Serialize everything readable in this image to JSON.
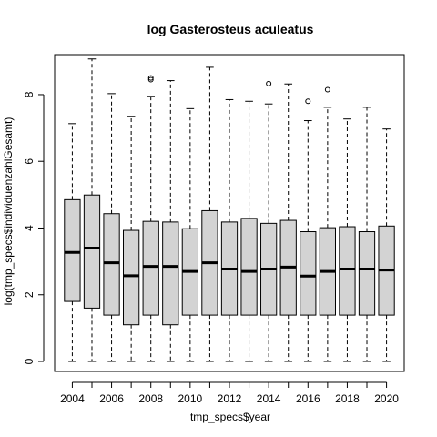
{
  "chart_data": {
    "type": "boxplot",
    "title": "log Gasterosteus aculeatus",
    "xlabel": "tmp_specs$year",
    "ylabel": "log(tmp_specs$individuenzahlGesamt)",
    "ylim": [
      -0.3,
      9.2
    ],
    "yticks": [
      0,
      2,
      4,
      6,
      8
    ],
    "x_tick_labels": [
      "2004",
      "2006",
      "2008",
      "2010",
      "2012",
      "2014",
      "2016",
      "2018",
      "2020"
    ],
    "grid": false,
    "categories": [
      "2004",
      "2005",
      "2006",
      "2007",
      "2008",
      "2009",
      "2010",
      "2011",
      "2012",
      "2013",
      "2014",
      "2015",
      "2016",
      "2017",
      "2018",
      "2019",
      "2020"
    ],
    "box_color": "#d3d3d3",
    "boxes": [
      {
        "year": "2004",
        "min": 0,
        "q1": 1.8,
        "median": 3.27,
        "q3": 4.85,
        "max": 7.13,
        "outliers": []
      },
      {
        "year": "2005",
        "min": 0,
        "q1": 1.6,
        "median": 3.4,
        "q3": 4.99,
        "max": 9.07,
        "outliers": []
      },
      {
        "year": "2006",
        "min": 0,
        "q1": 1.39,
        "median": 2.96,
        "q3": 4.43,
        "max": 8.03,
        "outliers": []
      },
      {
        "year": "2007",
        "min": 0,
        "q1": 1.1,
        "median": 2.57,
        "q3": 3.93,
        "max": 7.35,
        "outliers": []
      },
      {
        "year": "2008",
        "min": 0,
        "q1": 1.39,
        "median": 2.85,
        "q3": 4.2,
        "max": 7.95,
        "outliers": [
          8.45,
          8.5
        ]
      },
      {
        "year": "2009",
        "min": 0,
        "q1": 1.1,
        "median": 2.85,
        "q3": 4.18,
        "max": 8.42,
        "outliers": []
      },
      {
        "year": "2010",
        "min": 0,
        "q1": 1.39,
        "median": 2.7,
        "q3": 3.98,
        "max": 7.58,
        "outliers": []
      },
      {
        "year": "2011",
        "min": 0,
        "q1": 1.39,
        "median": 2.96,
        "q3": 4.52,
        "max": 8.82,
        "outliers": []
      },
      {
        "year": "2012",
        "min": 0,
        "q1": 1.39,
        "median": 2.77,
        "q3": 4.18,
        "max": 7.85,
        "outliers": []
      },
      {
        "year": "2013",
        "min": 0,
        "q1": 1.39,
        "median": 2.7,
        "q3": 4.29,
        "max": 7.8,
        "outliers": []
      },
      {
        "year": "2014",
        "min": 0,
        "q1": 1.39,
        "median": 2.77,
        "q3": 4.14,
        "max": 7.72,
        "outliers": [
          8.33
        ]
      },
      {
        "year": "2015",
        "min": 0,
        "q1": 1.39,
        "median": 2.83,
        "q3": 4.23,
        "max": 8.32,
        "outliers": []
      },
      {
        "year": "2016",
        "min": 0,
        "q1": 1.39,
        "median": 2.56,
        "q3": 3.89,
        "max": 7.22,
        "outliers": [
          7.8
        ]
      },
      {
        "year": "2017",
        "min": 0,
        "q1": 1.39,
        "median": 2.7,
        "q3": 4.01,
        "max": 7.62,
        "outliers": [
          8.15
        ]
      },
      {
        "year": "2018",
        "min": 0,
        "q1": 1.39,
        "median": 2.77,
        "q3": 4.04,
        "max": 7.27,
        "outliers": []
      },
      {
        "year": "2019",
        "min": 0,
        "q1": 1.39,
        "median": 2.77,
        "q3": 3.89,
        "max": 7.62,
        "outliers": []
      },
      {
        "year": "2020",
        "min": 0,
        "q1": 1.39,
        "median": 2.74,
        "q3": 4.06,
        "max": 6.97,
        "outliers": []
      }
    ]
  }
}
